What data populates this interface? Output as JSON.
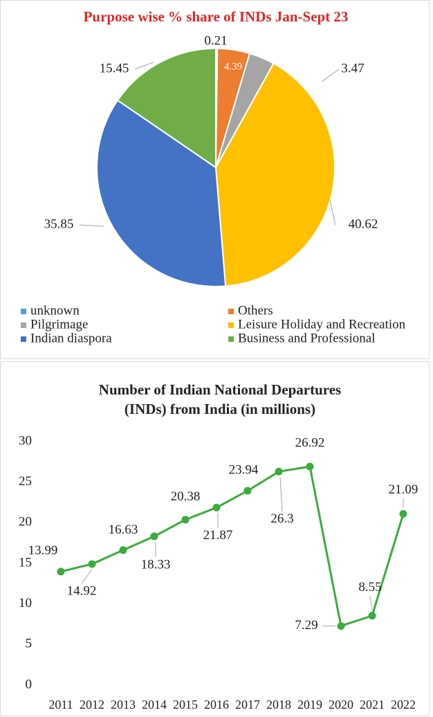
{
  "chart_data": [
    {
      "type": "pie",
      "title": "Purpose wise % share of INDs Jan-Sept 23",
      "categories": [
        "unknown",
        "Others",
        "Pilgrimage",
        "Leisure Holiday and Recreation",
        "Indian diaspora",
        "Business and Professional"
      ],
      "values": [
        0.21,
        4.39,
        3.47,
        40.62,
        35.85,
        15.45
      ],
      "colors": [
        "#5b9bd5",
        "#ed7d31",
        "#a5a5a5",
        "#ffc000",
        "#4472c4",
        "#70ad47"
      ]
    },
    {
      "type": "line",
      "title": [
        "Number of Indian National Departures",
        "(INDs) from India (in millions)"
      ],
      "categories": [
        "2011",
        "2012",
        "2013",
        "2014",
        "2015",
        "2016",
        "2017",
        "2018",
        "2019",
        "2020",
        "2021",
        "2022"
      ],
      "series": [
        {
          "name": "INDs",
          "color": "#3cab3c",
          "values": [
            13.99,
            14.92,
            16.63,
            18.33,
            20.38,
            21.87,
            23.94,
            26.3,
            26.92,
            7.29,
            8.55,
            21.09
          ]
        }
      ],
      "ylim": [
        0,
        30
      ],
      "yticks": [
        0,
        5,
        10,
        15,
        20,
        25,
        30
      ]
    }
  ]
}
